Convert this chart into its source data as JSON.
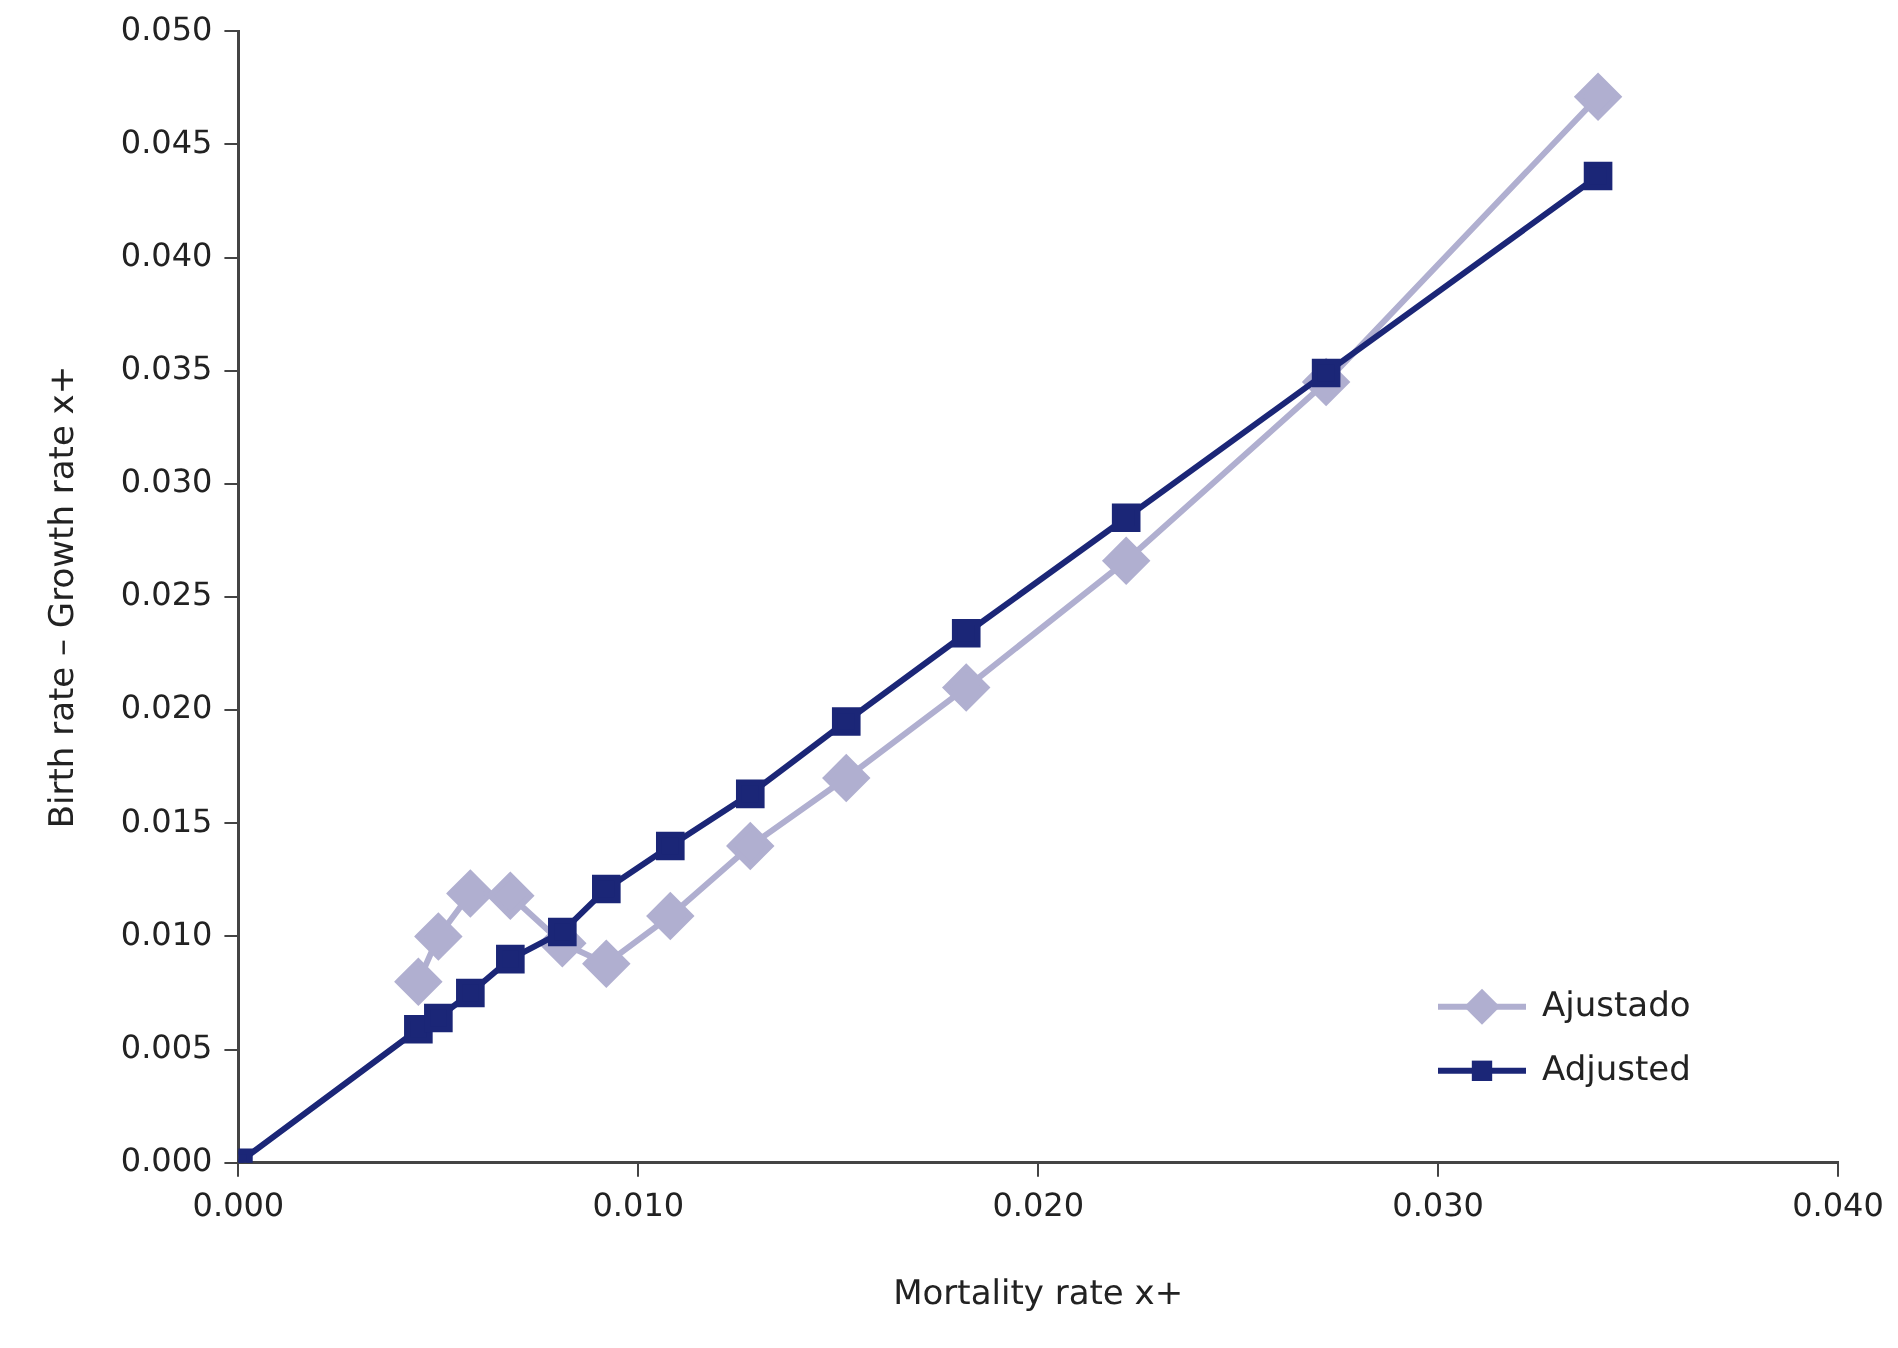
{
  "chart_data": {
    "type": "line",
    "xlabel": "Mortality rate x+",
    "ylabel": "Birth rate – Growth rate x+",
    "xlim": [
      0,
      0.04
    ],
    "xticks": [
      {
        "value": 0,
        "label": "0.000"
      },
      {
        "value": 0.01,
        "label": "0.010"
      },
      {
        "value": 0.02,
        "label": "0.020"
      },
      {
        "value": 0.03,
        "label": "0.030"
      },
      {
        "value": 0.04,
        "label": "0.040"
      }
    ],
    "ylim": [
      0,
      0.05
    ],
    "yticks": [
      {
        "value": 0,
        "label": "0.000"
      },
      {
        "value": 0.005,
        "label": "0.005"
      },
      {
        "value": 0.01,
        "label": "0.010"
      },
      {
        "value": 0.015,
        "label": "0.015"
      },
      {
        "value": 0.02,
        "label": "0.020"
      },
      {
        "value": 0.025,
        "label": "0.025"
      },
      {
        "value": 0.03,
        "label": "0.030"
      },
      {
        "value": 0.035,
        "label": "0.035"
      },
      {
        "value": 0.04,
        "label": "0.040"
      },
      {
        "value": 0.045,
        "label": "0.045"
      },
      {
        "value": 0.05,
        "label": "0.050"
      }
    ],
    "grid": false,
    "legend": "bottom right",
    "line_style": "solid",
    "series": [
      {
        "name": "Ajustado",
        "color": "#b0afd0",
        "marker": "diamond",
        "x": [
          0.0045,
          0.005,
          0.0058,
          0.0068,
          0.0081,
          0.0092,
          0.0108,
          0.0128,
          0.0152,
          0.0182,
          0.0222,
          0.0272,
          0.034
        ],
        "values": [
          0.008,
          0.01,
          0.0119,
          0.0118,
          0.0097,
          0.0088,
          0.0109,
          0.014,
          0.017,
          0.021,
          0.0266,
          0.0345,
          0.0471
        ]
      },
      {
        "name": "Adjusted",
        "color": "#1b2677",
        "marker": "square",
        "x": [
          0,
          0.0045,
          0.005,
          0.0058,
          0.0068,
          0.0081,
          0.0092,
          0.0108,
          0.0128,
          0.0152,
          0.0182,
          0.0222,
          0.0272,
          0.034
        ],
        "values": [
          0,
          0.0059,
          0.0064,
          0.0075,
          0.009,
          0.0102,
          0.0121,
          0.014,
          0.0163,
          0.0195,
          0.0234,
          0.0285,
          0.0349,
          0.0436
        ]
      }
    ]
  }
}
